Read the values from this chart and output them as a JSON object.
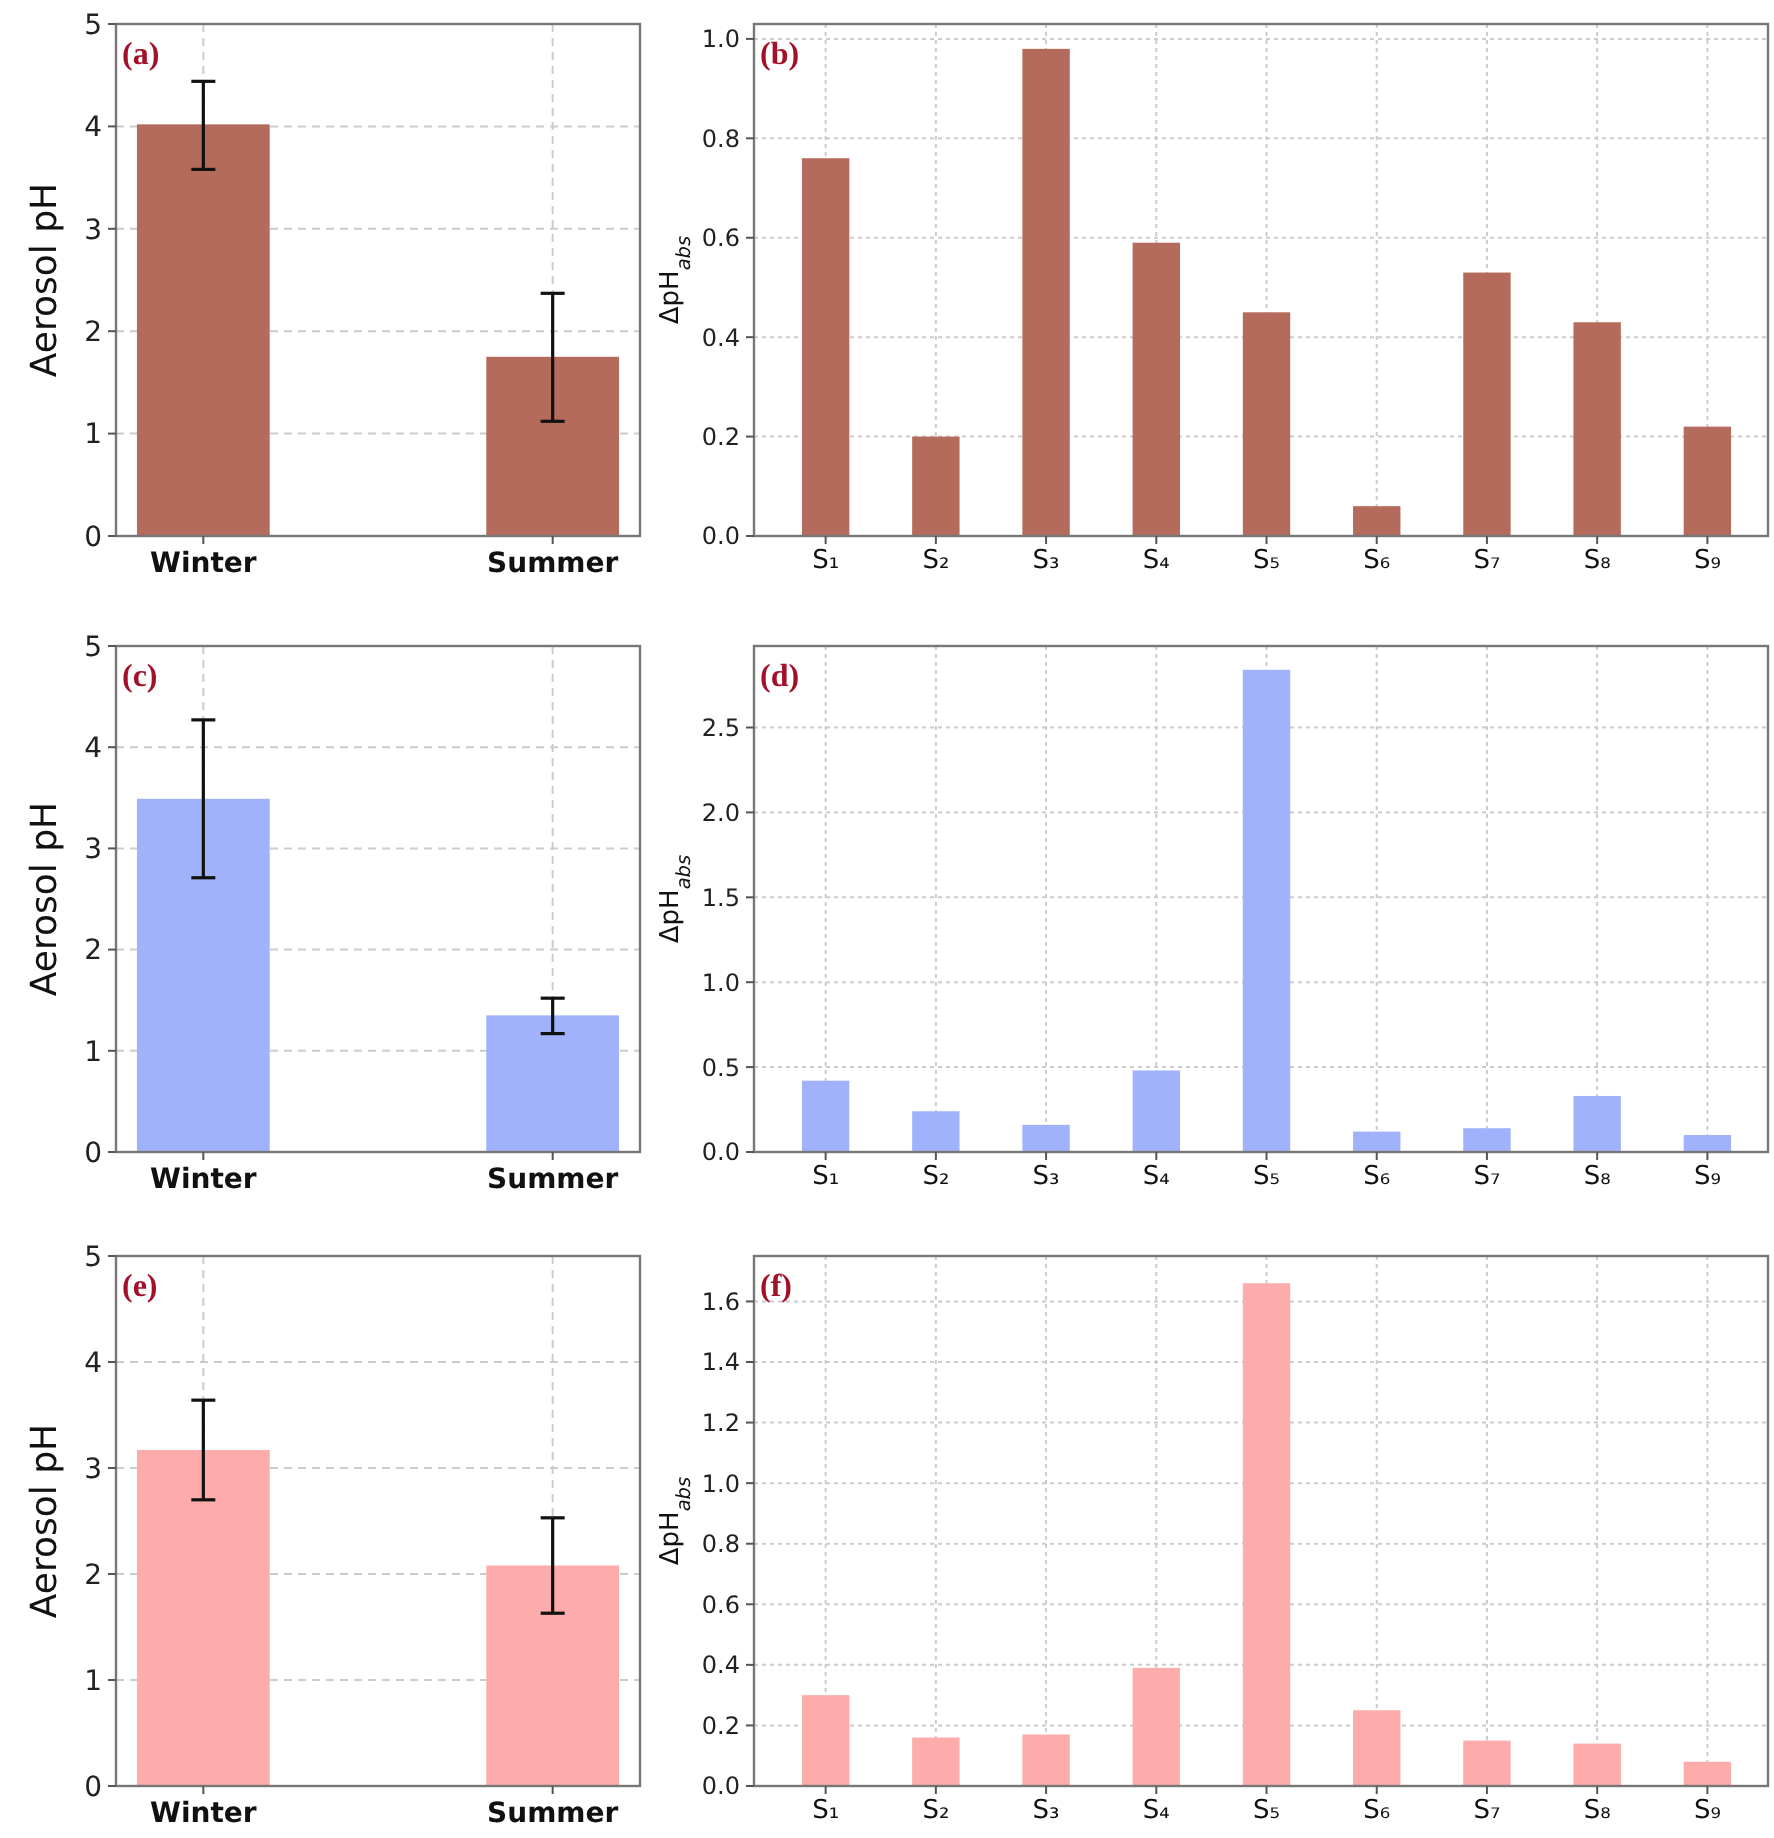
{
  "chart_data": [
    {
      "type": "bar",
      "title": "(a)",
      "ylabel": "Aerosol pH",
      "categories": [
        "Winter",
        "Summer"
      ],
      "values": [
        4.02,
        1.75
      ],
      "errors": [
        [
          3.58,
          4.44
        ],
        [
          1.12,
          2.37
        ]
      ],
      "color": "#b56b5c",
      "ylim": [
        0,
        5
      ],
      "yticks": [
        0,
        1,
        2,
        3,
        4,
        5
      ],
      "grid": true
    },
    {
      "type": "bar",
      "title": "(b)",
      "ylabel": "ΔpH$_{abs}$",
      "categories": [
        "S₁",
        "S₂",
        "S₃",
        "S₄",
        "S₅",
        "S₆",
        "S₇",
        "S₈",
        "S₉"
      ],
      "values": [
        0.76,
        0.2,
        0.98,
        0.59,
        0.45,
        0.06,
        0.53,
        0.43,
        0.22
      ],
      "color": "#b56b5c",
      "ylim": [
        0,
        1.03
      ],
      "yticks": [
        {
          "value": 0,
          "label": "0.0"
        },
        0.2,
        0.4,
        0.6,
        0.8,
        {
          "value": 1,
          "label": "1.0"
        }
      ],
      "grid": true
    },
    {
      "type": "bar",
      "title": "(c)",
      "ylabel": "Aerosol pH",
      "categories": [
        "Winter",
        "Summer"
      ],
      "values": [
        3.49,
        1.35
      ],
      "errors": [
        [
          2.71,
          4.27
        ],
        [
          1.17,
          1.52
        ]
      ],
      "color": "#a0b2fc",
      "ylim": [
        0,
        5
      ],
      "yticks": [
        0,
        1,
        2,
        3,
        4,
        5
      ],
      "grid": true
    },
    {
      "type": "bar",
      "title": "(d)",
      "ylabel": "ΔpH$_{abs}$",
      "categories": [
        "S₁",
        "S₂",
        "S₃",
        "S₄",
        "S₅",
        "S₆",
        "S₇",
        "S₈",
        "S₉"
      ],
      "values": [
        0.42,
        0.24,
        0.16,
        0.48,
        2.84,
        0.12,
        0.14,
        0.33,
        0.1
      ],
      "color": "#a0b2fc",
      "ylim": [
        0,
        2.98
      ],
      "yticks": [
        {
          "value": 0,
          "label": "0.0"
        },
        0.5,
        {
          "value": 1,
          "label": "1.0"
        },
        1.5,
        {
          "value": 2,
          "label": "2.0"
        },
        2.5
      ],
      "grid": true
    },
    {
      "type": "bar",
      "title": "(e)",
      "ylabel": "Aerosol pH",
      "categories": [
        "Winter",
        "Summer"
      ],
      "values": [
        3.17,
        2.08
      ],
      "errors": [
        [
          2.7,
          3.64
        ],
        [
          1.63,
          2.53
        ]
      ],
      "color": "#fdabab",
      "ylim": [
        0,
        5
      ],
      "yticks": [
        0,
        1,
        2,
        3,
        4,
        5
      ],
      "grid": true
    },
    {
      "type": "bar",
      "title": "(f)",
      "ylabel": "ΔpH$_{abs}$",
      "categories": [
        "S₁",
        "S₂",
        "S₃",
        "S₄",
        "S₅",
        "S₆",
        "S₇",
        "S₈",
        "S₉"
      ],
      "values": [
        0.3,
        0.16,
        0.17,
        0.39,
        1.66,
        0.25,
        0.15,
        0.14,
        0.08
      ],
      "color": "#fdabab",
      "ylim": [
        0,
        1.75
      ],
      "yticks": [
        {
          "value": 0,
          "label": "0.0"
        },
        0.2,
        0.4,
        0.6,
        0.8,
        {
          "value": 1,
          "label": "1.0"
        },
        1.2,
        1.4,
        1.6
      ],
      "grid": true
    }
  ]
}
